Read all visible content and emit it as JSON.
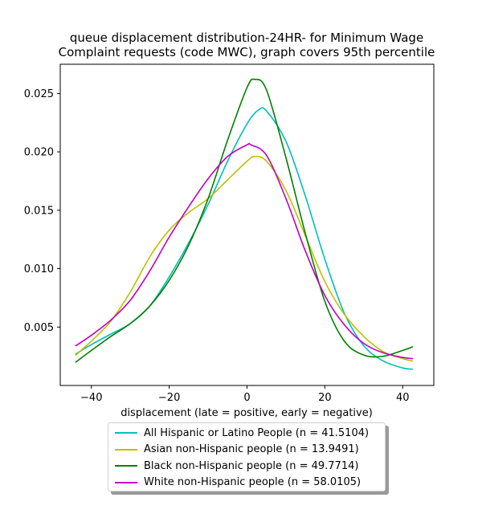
{
  "chart_data": {
    "type": "line",
    "title": "queue displacement distribution-24HR-  for Minimum Wage\nComplaint  requests (code MWC), graph covers 95th percentile",
    "xlabel": "displacement (late = positive, early = negative)",
    "ylabel": "",
    "xlim": [
      -48,
      48
    ],
    "ylim": [
      0.0,
      0.0275
    ],
    "xticks": [
      -40,
      -20,
      0,
      20,
      40
    ],
    "xtick_labels": [
      "−40",
      "−20",
      "0",
      "20",
      "40"
    ],
    "yticks": [
      0.005,
      0.01,
      0.015,
      0.02,
      0.025
    ],
    "ytick_labels": [
      "0.005",
      "0.010",
      "0.015",
      "0.020",
      "0.025"
    ],
    "grid": false,
    "legend_position": "below-center",
    "series": [
      {
        "name": "All Hispanic or Latino People (n = 41.5104)",
        "color": "#00bfbf",
        "x": [
          -44,
          -40,
          -35,
          -30,
          -25,
          -20,
          -15,
          -10,
          -5,
          0,
          3,
          5,
          10,
          15,
          20,
          25,
          30,
          35,
          40,
          42.5
        ],
        "y": [
          0.0027,
          0.0035,
          0.0044,
          0.0053,
          0.0068,
          0.0093,
          0.0122,
          0.0155,
          0.0192,
          0.0224,
          0.0236,
          0.0235,
          0.0209,
          0.0162,
          0.0108,
          0.0062,
          0.0034,
          0.0021,
          0.0015,
          0.0014
        ]
      },
      {
        "name": "Asian non-Hispanic people (n = 13.9491)",
        "color": "#bfbf00",
        "x": [
          -44,
          -40,
          -35,
          -30,
          -25,
          -20,
          -15,
          -10,
          -5,
          0,
          2,
          5,
          10,
          15,
          20,
          25,
          30,
          35,
          40,
          42.5
        ],
        "y": [
          0.0026,
          0.0038,
          0.0055,
          0.008,
          0.011,
          0.0133,
          0.0148,
          0.016,
          0.0176,
          0.0192,
          0.0196,
          0.0192,
          0.0167,
          0.0128,
          0.0089,
          0.0061,
          0.0042,
          0.0029,
          0.0023,
          0.0021
        ]
      },
      {
        "name": "Black non-Hispanic people (n = 49.7714)",
        "color": "#008000",
        "x": [
          -44,
          -40,
          -35,
          -30,
          -25,
          -20,
          -15,
          -10,
          -5,
          0,
          2,
          5,
          10,
          15,
          20,
          25,
          30,
          35,
          40,
          42.5
        ],
        "y": [
          0.002,
          0.003,
          0.0042,
          0.0053,
          0.0068,
          0.009,
          0.012,
          0.016,
          0.021,
          0.0255,
          0.0262,
          0.0253,
          0.0195,
          0.013,
          0.0072,
          0.0038,
          0.0026,
          0.0025,
          0.003,
          0.0033
        ]
      },
      {
        "name": "White non-Hispanic people (n = 58.0105)",
        "color": "#bf00bf",
        "x": [
          -44,
          -40,
          -35,
          -30,
          -25,
          -20,
          -15,
          -10,
          -5,
          0,
          1,
          5,
          10,
          15,
          20,
          25,
          30,
          35,
          40,
          42.5
        ],
        "y": [
          0.0034,
          0.0043,
          0.0056,
          0.0073,
          0.0098,
          0.0127,
          0.0153,
          0.0177,
          0.0196,
          0.0206,
          0.0206,
          0.0197,
          0.016,
          0.0115,
          0.0077,
          0.0052,
          0.0036,
          0.0028,
          0.0024,
          0.0023
        ]
      }
    ]
  }
}
